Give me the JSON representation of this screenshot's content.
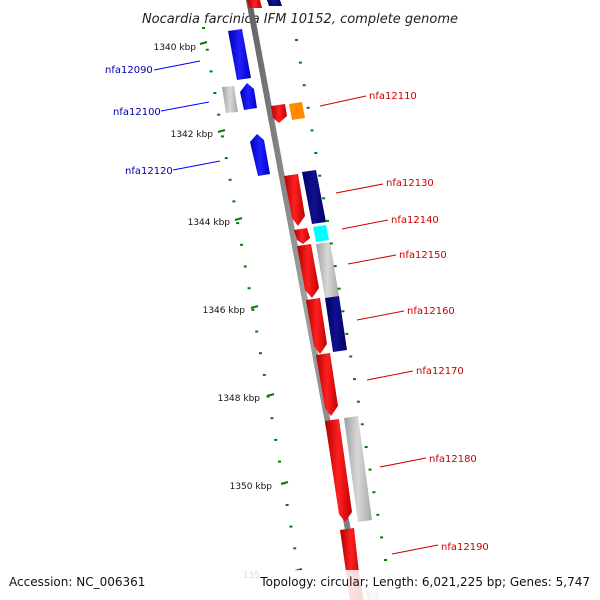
{
  "title": "Nocardia farcinica IFM 10152, complete genome",
  "footer": {
    "accession": "Accession: NC_006361",
    "summary": "Topology: circular; Length: 6,021,225 bp; Genes: 5,747"
  },
  "kbp_labels": [
    "1340 kbp",
    "1342 kbp",
    "1344 kbp",
    "1346 kbp",
    "1348 kbp",
    "1350 kbp",
    "135"
  ],
  "colors": {
    "reverse_gene": "#0000ff",
    "forward_gene": "#ff0000",
    "reverse_label": "#0000aa",
    "forward_label": "#cc0000",
    "tick": "#008000",
    "backbone": "#808080",
    "navy": "#000080",
    "cyan": "#00ffff",
    "orange": "#ff8c00",
    "gray": "#c0c0c0"
  },
  "gene_labels": [
    {
      "text": "nfa12090",
      "strand": "reverse"
    },
    {
      "text": "nfa12100",
      "strand": "reverse"
    },
    {
      "text": "nfa12120",
      "strand": "reverse"
    },
    {
      "text": "nfa12110",
      "strand": "forward"
    },
    {
      "text": "nfa12130",
      "strand": "forward"
    },
    {
      "text": "nfa12140",
      "strand": "forward"
    },
    {
      "text": "nfa12150",
      "strand": "forward"
    },
    {
      "text": "nfa12160",
      "strand": "forward"
    },
    {
      "text": "nfa12170",
      "strand": "forward"
    },
    {
      "text": "nfa12180",
      "strand": "forward"
    },
    {
      "text": "nfa12190",
      "strand": "forward"
    }
  ]
}
